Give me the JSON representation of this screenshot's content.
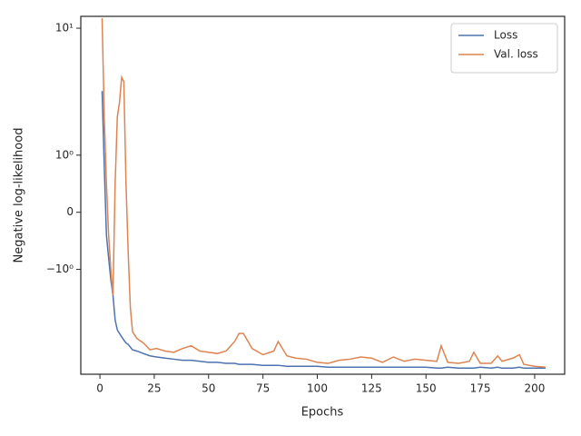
{
  "chart_data": {
    "type": "line",
    "x_label": "Epochs",
    "y_label": "Negative log-likelihood",
    "yscale": "symlog",
    "legend": "upper right",
    "x": [
      1,
      2,
      3,
      4,
      5,
      6,
      7,
      8,
      9,
      10,
      11,
      12,
      13,
      14,
      15,
      17,
      20,
      23,
      26,
      30,
      34,
      38,
      42,
      46,
      50,
      54,
      58,
      62,
      64,
      66,
      70,
      75,
      80,
      82,
      86,
      90,
      95,
      100,
      105,
      110,
      115,
      120,
      125,
      130,
      135,
      140,
      145,
      150,
      155,
      157,
      160,
      165,
      170,
      172,
      175,
      180,
      183,
      185,
      190,
      193,
      195,
      200,
      205
    ],
    "series": [
      {
        "name": "Loss",
        "color": "#4c72b0",
        "values": [
          3.2,
          0.8,
          -0.4,
          -0.8,
          -1.2,
          -1.6,
          -2.5,
          -3.0,
          -3.2,
          -3.4,
          -3.6,
          -3.8,
          -3.9,
          -4.1,
          -4.3,
          -4.4,
          -4.6,
          -4.8,
          -4.9,
          -5.0,
          -5.1,
          -5.2,
          -5.2,
          -5.3,
          -5.4,
          -5.4,
          -5.5,
          -5.5,
          -5.6,
          -5.6,
          -5.6,
          -5.7,
          -5.7,
          -5.7,
          -5.8,
          -5.8,
          -5.8,
          -5.8,
          -5.9,
          -5.9,
          -5.9,
          -5.9,
          -5.9,
          -5.9,
          -5.9,
          -5.9,
          -5.9,
          -5.9,
          -6.0,
          -6.0,
          -5.9,
          -6.0,
          -6.0,
          -6.0,
          -5.9,
          -6.0,
          -5.9,
          -6.0,
          -6.0,
          -5.9,
          -6.0,
          -6.0,
          -6.0
        ]
      },
      {
        "name": "Val. loss",
        "color": "#dd8452",
        "values": [
          12,
          2.0,
          0.5,
          -0.4,
          -1.0,
          -1.6,
          0.5,
          2.0,
          2.6,
          4.1,
          3.8,
          0.5,
          -0.7,
          -2.0,
          -3.1,
          -3.5,
          -3.8,
          -4.3,
          -4.2,
          -4.4,
          -4.5,
          -4.2,
          -4.0,
          -4.4,
          -4.5,
          -4.6,
          -4.4,
          -3.7,
          -3.2,
          -3.2,
          -4.2,
          -4.7,
          -4.4,
          -3.7,
          -4.8,
          -5.0,
          -5.1,
          -5.4,
          -5.5,
          -5.2,
          -5.1,
          -4.9,
          -5.0,
          -5.4,
          -4.9,
          -5.3,
          -5.1,
          -5.2,
          -5.3,
          -4.0,
          -5.4,
          -5.5,
          -5.3,
          -4.5,
          -5.5,
          -5.5,
          -4.8,
          -5.3,
          -5.0,
          -4.7,
          -5.6,
          -5.8,
          -5.9
        ]
      }
    ],
    "xlim": [
      -8.8,
      213.8
    ],
    "xticks": [
      0,
      25,
      50,
      75,
      100,
      125,
      150,
      175,
      200
    ],
    "ylim": [
      -6.7,
      12.4
    ],
    "yticks": [
      {
        "value": -1,
        "label": "−10⁰"
      },
      0,
      {
        "value": 1,
        "label": "10⁰"
      },
      {
        "value": 10,
        "label": "10¹"
      }
    ]
  }
}
